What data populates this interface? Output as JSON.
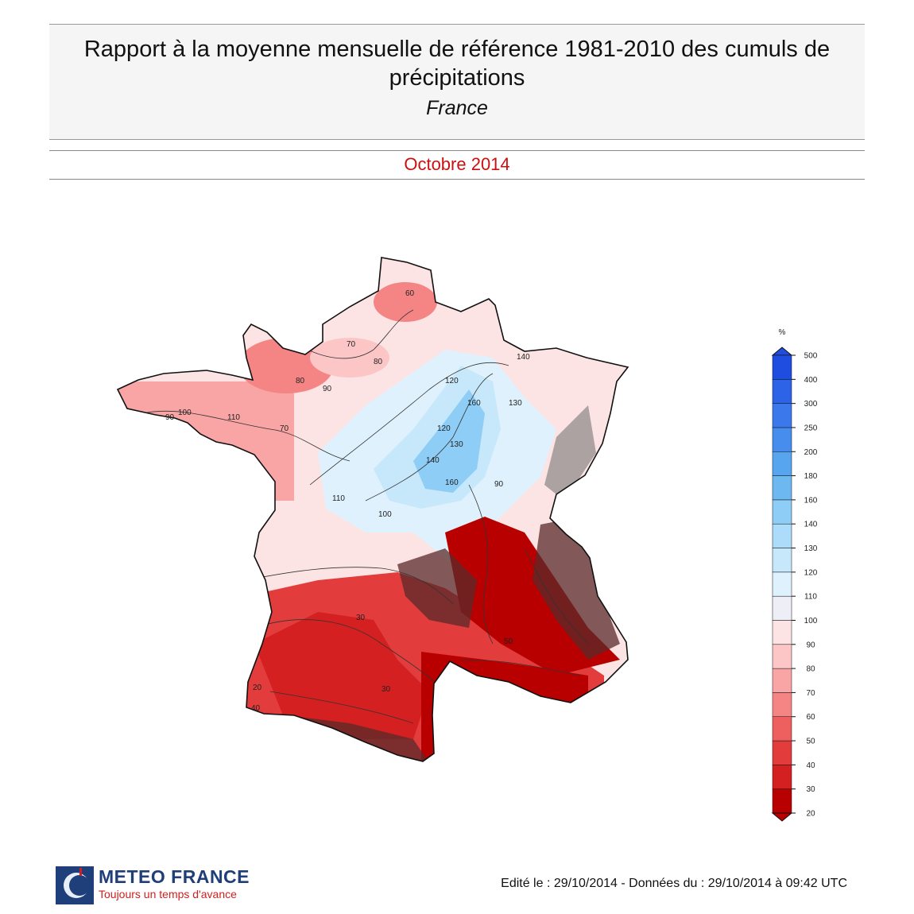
{
  "header": {
    "title": "Rapport à la moyenne mensuelle de référence 1981-2010 des cumuls de précipitations",
    "region": "France",
    "period": "Octobre 2014"
  },
  "legend": {
    "unit": "%",
    "levels": [
      20,
      30,
      40,
      50,
      60,
      70,
      80,
      90,
      100,
      110,
      120,
      130,
      140,
      160,
      180,
      200,
      250,
      300,
      400,
      500
    ],
    "colors": [
      "#b80000",
      "#d42020",
      "#e33c3c",
      "#ee5f5f",
      "#f58585",
      "#f9a5a5",
      "#fcc6c6",
      "#fde4e4",
      "#eeeef6",
      "#dff1fd",
      "#c7e8fb",
      "#acdcf9",
      "#8ecdf6",
      "#6db8f1",
      "#57a5ee",
      "#468ded",
      "#3a78eb",
      "#2d63e6",
      "#1f4de0"
    ]
  },
  "map": {
    "contour_labels": [
      "60",
      "70",
      "80",
      "90",
      "100",
      "110",
      "120",
      "130",
      "140",
      "160",
      "70",
      "80",
      "90",
      "110",
      "30",
      "20",
      "40",
      "30",
      "50",
      "120",
      "130",
      "140",
      "160",
      "90",
      "100"
    ]
  },
  "branding": {
    "name": "METEO FRANCE",
    "slogan": "Toujours un temps d'avance"
  },
  "footer": {
    "text": "Edité le : 29/10/2014 - Données du : 29/10/2014 à 09:42 UTC"
  }
}
